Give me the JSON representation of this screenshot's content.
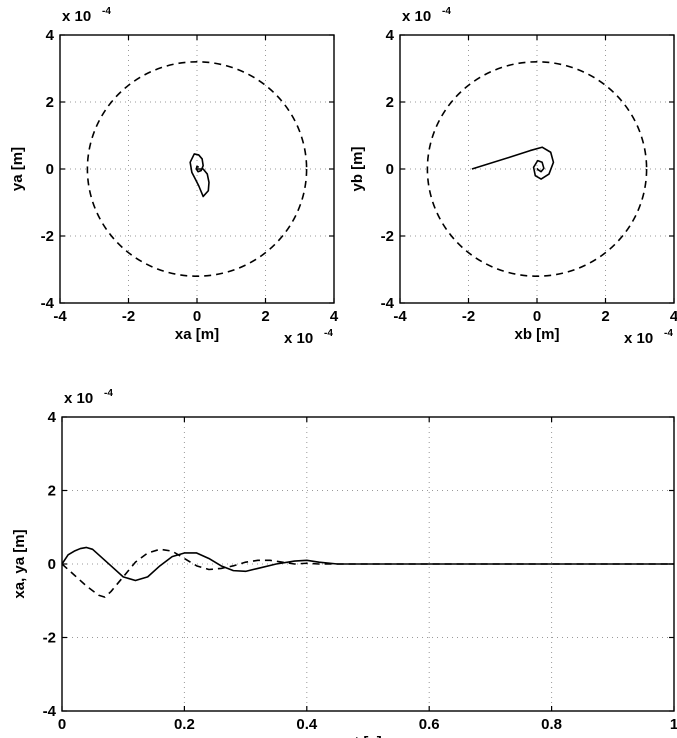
{
  "chart_data": [
    {
      "id": "a",
      "type": "line",
      "xlabel": "xa [m]",
      "ylabel": "ya [m]",
      "x_multiplier": "x 10",
      "x_multiplier_exp": "-4",
      "y_multiplier": "x 10",
      "y_multiplier_exp": "-4",
      "xlim": [
        -4,
        4
      ],
      "ylim": [
        -4,
        4
      ],
      "xticks": [
        -4,
        -2,
        0,
        2,
        4
      ],
      "yticks": [
        -4,
        -2,
        0,
        2,
        4
      ],
      "xtick_labels": [
        "-4",
        "-2",
        "0",
        "2",
        "4"
      ],
      "ytick_labels": [
        "-4",
        "-2",
        "0",
        "2",
        "4"
      ],
      "grid": true,
      "series": [
        {
          "style": "dashed",
          "shape": "circle",
          "center": [
            0,
            0
          ],
          "radius": 3.2
        },
        {
          "style": "solid",
          "x": [
            0.0,
            0.18,
            0.3,
            0.35,
            0.33,
            0.18,
            0.05,
            -0.05,
            -0.15,
            -0.2,
            -0.08,
            0.05,
            0.15,
            0.18,
            0.12,
            0.03,
            -0.02,
            0.0,
            0.05
          ],
          "y": [
            0.0,
            0.0,
            -0.15,
            -0.4,
            -0.65,
            -0.82,
            -0.5,
            -0.3,
            -0.1,
            0.2,
            0.45,
            0.42,
            0.3,
            0.1,
            -0.05,
            -0.08,
            0.0,
            0.08,
            0.05
          ]
        }
      ]
    },
    {
      "id": "b",
      "type": "line",
      "xlabel": "xb [m]",
      "ylabel": "yb [m]",
      "x_multiplier": "x 10",
      "x_multiplier_exp": "-4",
      "y_multiplier": "x 10",
      "y_multiplier_exp": "-4",
      "xlim": [
        -4,
        4
      ],
      "ylim": [
        -4,
        4
      ],
      "xticks": [
        -4,
        -2,
        0,
        2,
        4
      ],
      "yticks": [
        -4,
        -2,
        0,
        2,
        4
      ],
      "xtick_labels": [
        "-4",
        "-2",
        "0",
        "2",
        "4"
      ],
      "ytick_labels": [
        "-4",
        "-2",
        "0",
        "2",
        "4"
      ],
      "grid": true,
      "series": [
        {
          "style": "dashed",
          "shape": "circle",
          "center": [
            0,
            0
          ],
          "radius": 3.2
        },
        {
          "style": "solid",
          "x": [
            -1.9,
            -0.8,
            -0.2,
            0.15,
            0.4,
            0.48,
            0.35,
            0.12,
            -0.05,
            -0.1,
            0.02,
            0.15,
            0.2,
            0.12,
            0.03,
            0.0
          ],
          "y": [
            0.0,
            0.35,
            0.55,
            0.65,
            0.5,
            0.2,
            -0.15,
            -0.3,
            -0.2,
            0.05,
            0.25,
            0.2,
            0.02,
            -0.08,
            -0.02,
            0.02
          ]
        }
      ]
    },
    {
      "id": "c",
      "type": "line",
      "xlabel": "t [s]",
      "ylabel": "xa, ya [m]",
      "y_multiplier": "x 10",
      "y_multiplier_exp": "-4",
      "xlim": [
        0,
        1
      ],
      "ylim": [
        -4,
        4
      ],
      "xticks": [
        0,
        0.2,
        0.4,
        0.6,
        0.8,
        1
      ],
      "yticks": [
        -4,
        -2,
        0,
        2,
        4
      ],
      "xtick_labels": [
        "0",
        "0.2",
        "0.4",
        "0.6",
        "0.8",
        "1"
      ],
      "ytick_labels": [
        "-4",
        "-2",
        "0",
        "2",
        "4"
      ],
      "grid": true,
      "series": [
        {
          "style": "solid",
          "x": [
            0,
            0.01,
            0.02,
            0.03,
            0.04,
            0.05,
            0.06,
            0.08,
            0.1,
            0.12,
            0.14,
            0.16,
            0.18,
            0.2,
            0.22,
            0.24,
            0.26,
            0.28,
            0.3,
            0.32,
            0.35,
            0.38,
            0.4,
            0.42,
            0.45,
            0.5,
            0.6,
            0.7,
            0.8,
            0.9,
            1.0
          ],
          "y": [
            0,
            0.25,
            0.35,
            0.42,
            0.45,
            0.4,
            0.25,
            -0.05,
            -0.35,
            -0.45,
            -0.35,
            -0.05,
            0.2,
            0.3,
            0.3,
            0.15,
            -0.05,
            -0.18,
            -0.2,
            -0.12,
            0.0,
            0.08,
            0.1,
            0.05,
            0.0,
            0.0,
            0.0,
            0.0,
            0.0,
            0.0,
            0.0
          ]
        },
        {
          "style": "dashed",
          "x": [
            0,
            0.02,
            0.04,
            0.06,
            0.07,
            0.08,
            0.1,
            0.12,
            0.14,
            0.16,
            0.18,
            0.2,
            0.22,
            0.24,
            0.26,
            0.28,
            0.3,
            0.32,
            0.34,
            0.36,
            0.38,
            0.4,
            0.42,
            0.45,
            0.5,
            0.6,
            0.8,
            1.0
          ],
          "y": [
            0,
            -0.3,
            -0.6,
            -0.85,
            -0.9,
            -0.75,
            -0.35,
            0.05,
            0.3,
            0.4,
            0.35,
            0.15,
            -0.05,
            -0.15,
            -0.12,
            -0.05,
            0.05,
            0.1,
            0.1,
            0.05,
            0.0,
            0.02,
            0.0,
            0.0,
            0.0,
            0.0,
            0.0,
            0.0
          ]
        }
      ]
    }
  ]
}
